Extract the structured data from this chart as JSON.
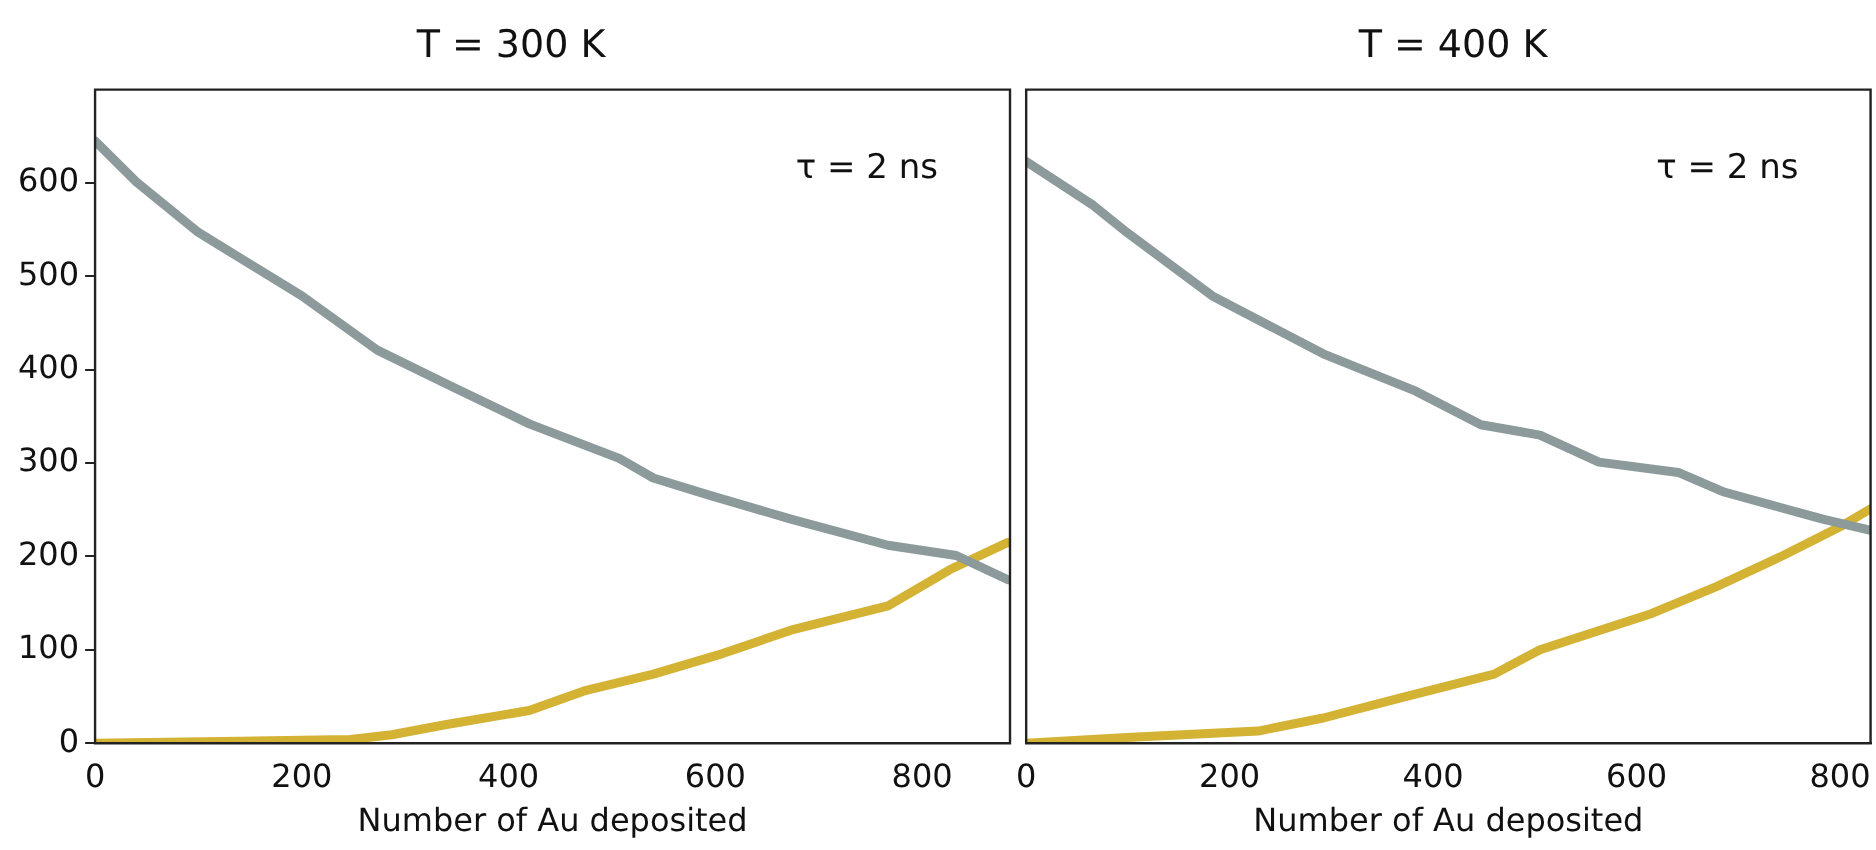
{
  "chart_data": [
    {
      "type": "line",
      "title": "T = 300 K",
      "xlabel": "Number of Au deposited",
      "annotations": [
        "τ = 2 ns"
      ],
      "xlim": [
        0,
        885
      ],
      "xticks": [
        0,
        200,
        400,
        600,
        800
      ],
      "ylim": [
        0,
        700
      ],
      "yticks": [
        0,
        100,
        200,
        300,
        400,
        500,
        600
      ],
      "grid": false,
      "legend": false,
      "marker": "none",
      "line_style": "solid",
      "series": [
        {
          "color": "#8c9a9b",
          "x": [
            0,
            40,
            100,
            200,
            273,
            347,
            420,
            507,
            540,
            593,
            673,
            767,
            833,
            883
          ],
          "values": [
            645,
            601,
            547,
            479,
            421,
            381,
            342,
            305,
            284,
            266,
            240,
            212,
            201,
            175
          ]
        },
        {
          "color": "#d4b234",
          "x": [
            0,
            140,
            247,
            287,
            340,
            420,
            473,
            540,
            607,
            673,
            767,
            827,
            883
          ],
          "values": [
            0,
            2,
            4,
            9,
            20,
            35,
            56,
            74,
            96,
            121,
            147,
            186,
            215
          ]
        }
      ]
    },
    {
      "type": "line",
      "title": "T = 400 K",
      "xlabel": "Number of Au deposited",
      "annotations": [
        "τ = 2 ns"
      ],
      "xlim": [
        0,
        830
      ],
      "xticks": [
        0,
        200,
        400,
        600,
        800
      ],
      "ylim": [
        0,
        700
      ],
      "yticks": [
        0,
        100,
        200,
        300,
        400,
        500,
        600
      ],
      "tick_labels": "x",
      "grid": false,
      "legend": false,
      "marker": "none",
      "line_style": "solid",
      "series": [
        {
          "color": "#8c9a9b",
          "x": [
            0,
            66,
            99,
            183,
            292,
            383,
            447,
            505,
            563,
            641,
            686,
            783,
            830
          ],
          "values": [
            623,
            576,
            547,
            479,
            417,
            377,
            341,
            330,
            301,
            290,
            269,
            240,
            228
          ]
        },
        {
          "color": "#d4b234",
          "x": [
            0,
            99,
            228,
            292,
            370,
            460,
            505,
            615,
            679,
            744,
            802,
            830
          ],
          "values": [
            0,
            6,
            13,
            27,
            49,
            74,
            100,
            139,
            168,
            201,
            233,
            251
          ]
        }
      ]
    }
  ]
}
